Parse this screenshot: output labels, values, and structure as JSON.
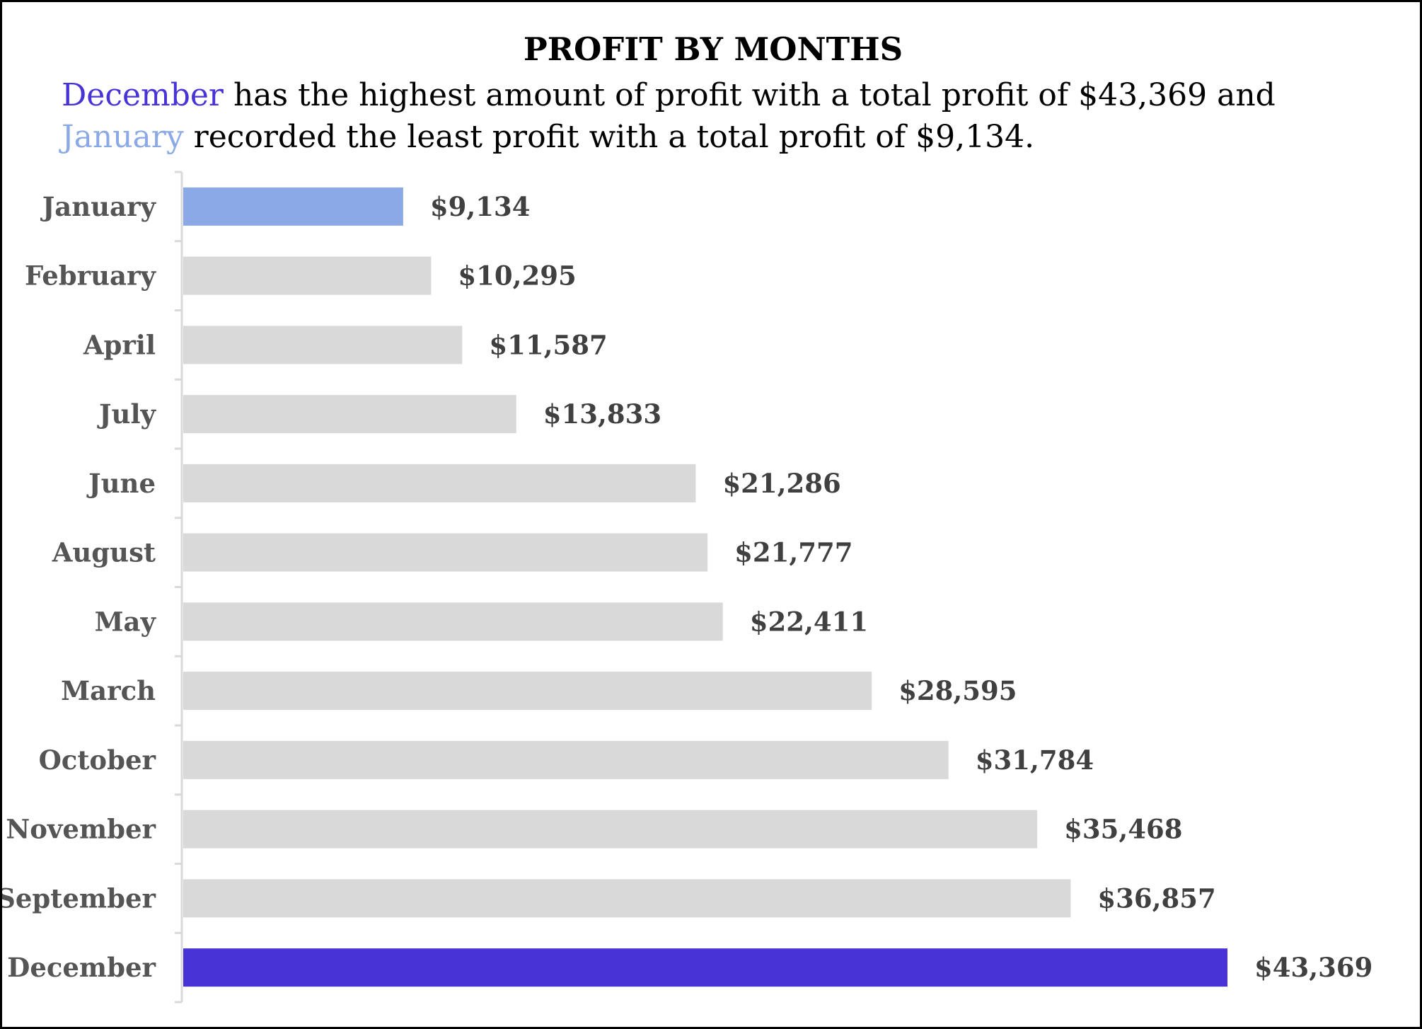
{
  "title": "PROFIT BY MONTHS",
  "subtitle": {
    "highlight_max": "December",
    "text_1": " has the highest amount of profit with a total profit of $43,369 and ",
    "highlight_min": "January",
    "text_2": " recorded the least profit with a total profit of $9,134."
  },
  "colors": {
    "max": "#4733D6",
    "min": "#8BA9E6",
    "default": "#D9D9D9",
    "axis": "#D9D9D9"
  },
  "chart_data": {
    "type": "bar",
    "orientation": "horizontal",
    "title": "PROFIT BY MONTHS",
    "xlabel": "",
    "ylabel": "",
    "xlim": [
      0,
      45000
    ],
    "grid": false,
    "categories": [
      "January",
      "February",
      "April",
      "July",
      "June",
      "August",
      "May",
      "March",
      "October",
      "November",
      "September",
      "December"
    ],
    "values": [
      9134,
      10295,
      11587,
      13833,
      21286,
      21777,
      22411,
      28595,
      31784,
      35468,
      36857,
      43369
    ],
    "value_labels": [
      "$9,134",
      "$10,295",
      "$11,587",
      "$13,833",
      "$21,286",
      "$21,777",
      "$22,411",
      "$28,595",
      "$31,784",
      "$35,468",
      "$36,857",
      "$43,369"
    ],
    "highlight": {
      "January": "min",
      "December": "max"
    }
  }
}
